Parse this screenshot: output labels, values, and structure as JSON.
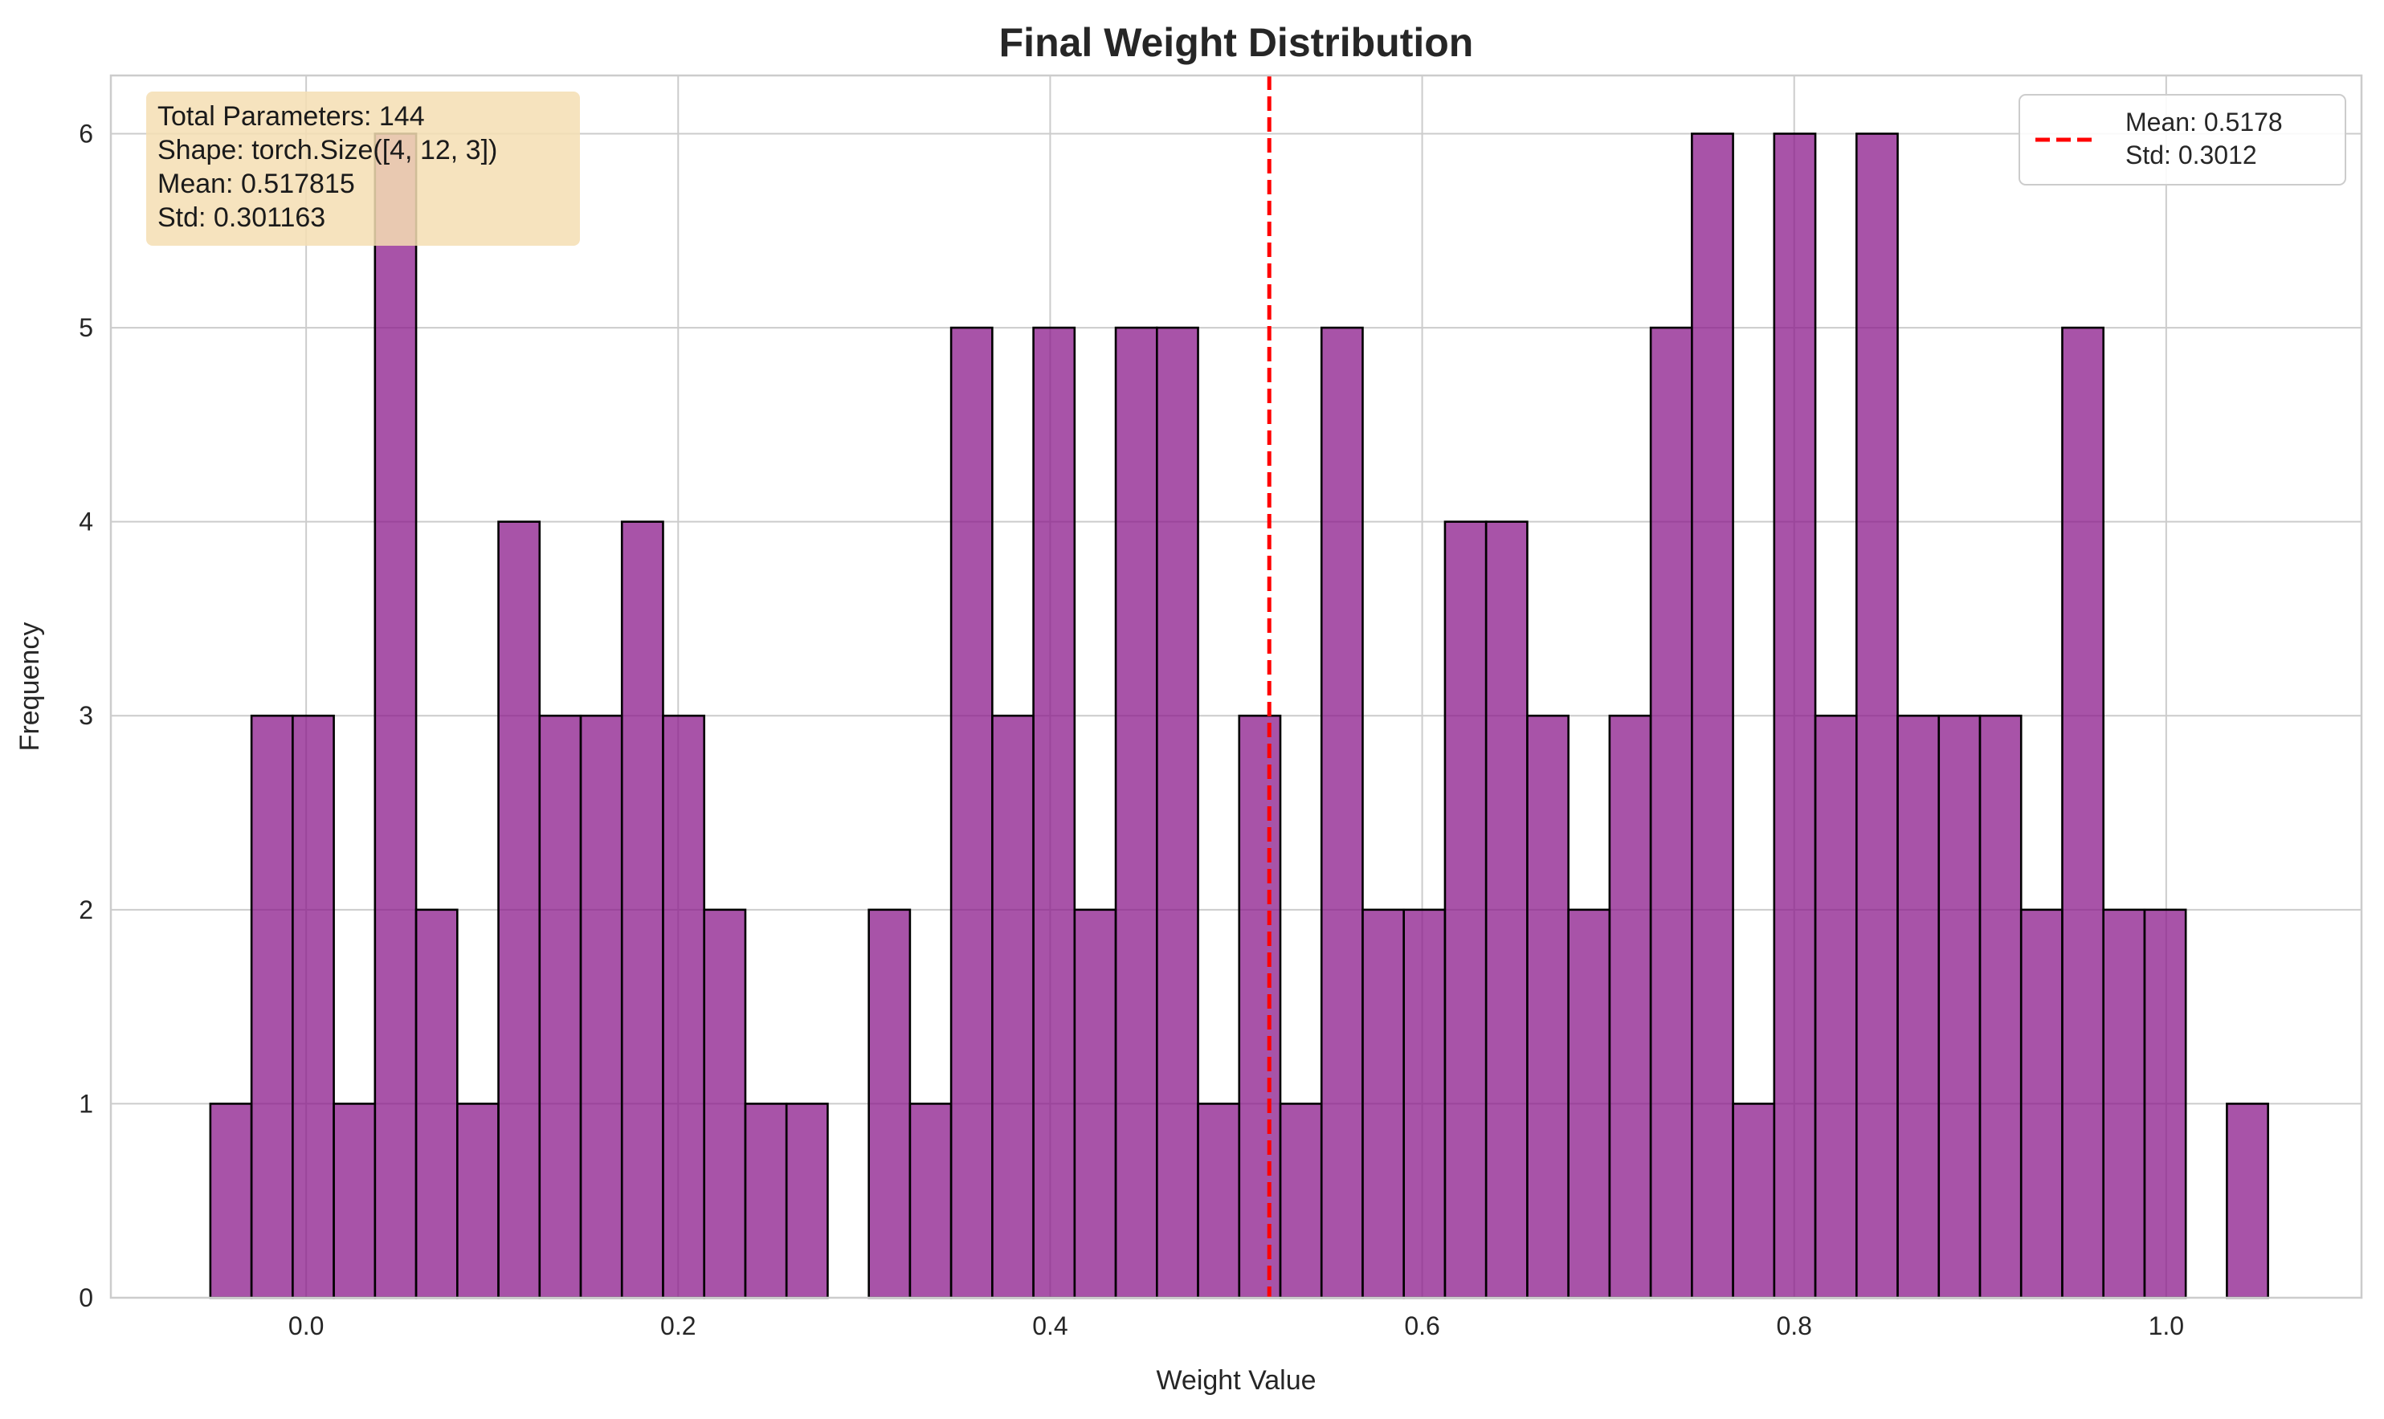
{
  "chart_data": {
    "type": "bar",
    "title": "Final Weight Distribution",
    "xlabel": "Weight Value",
    "ylabel": "Frequency",
    "xlim": [
      -0.105,
      1.105
    ],
    "ylim": [
      0,
      6.3
    ],
    "xticks": [
      0.0,
      0.2,
      0.4,
      0.6,
      0.8,
      1.0
    ],
    "xtick_labels": [
      "0.0",
      "0.2",
      "0.4",
      "0.6",
      "0.8",
      "1.0"
    ],
    "yticks": [
      0,
      1,
      2,
      3,
      4,
      5,
      6
    ],
    "ytick_labels": [
      "0",
      "1",
      "2",
      "3",
      "4",
      "5",
      "6"
    ],
    "grid": true,
    "bin_start": -0.0515,
    "bin_width": 0.022125,
    "values": [
      1,
      3,
      3,
      1,
      6,
      2,
      1,
      4,
      3,
      3,
      4,
      3,
      2,
      1,
      1,
      0,
      2,
      1,
      5,
      3,
      5,
      2,
      5,
      5,
      1,
      3,
      1,
      5,
      2,
      2,
      4,
      4,
      3,
      2,
      3,
      5,
      6,
      1,
      6,
      3,
      6,
      3,
      3,
      3,
      2,
      5,
      2,
      2,
      0,
      1
    ],
    "bar_color": "#8b1a8b",
    "bar_opacity": 0.75,
    "mean_line": {
      "x": 0.5178,
      "color": "#ff0000",
      "style": "dashed"
    },
    "legend": {
      "placement": "top-right",
      "line1": "Mean: 0.5178",
      "line2": "Std: 0.3012"
    },
    "stats_box": {
      "placement": "top-left",
      "background": "#f5deb3",
      "lines": [
        "Total Parameters: 144",
        "Shape: torch.Size([4, 12, 3])",
        "Mean: 0.517815",
        "Std: 0.301163"
      ]
    }
  }
}
